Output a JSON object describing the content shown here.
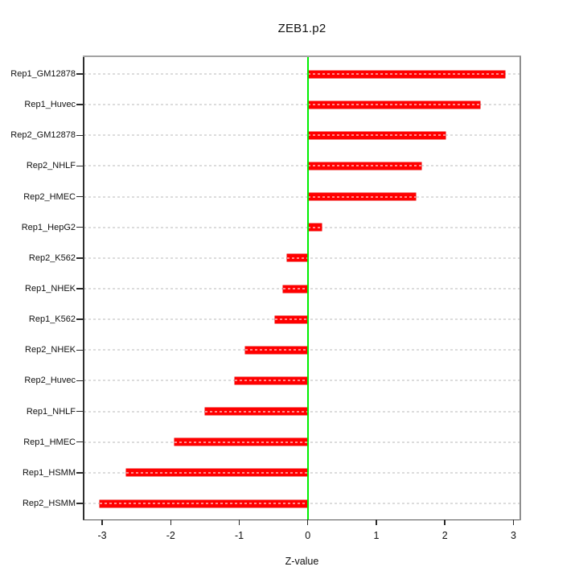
{
  "chart_data": {
    "type": "bar",
    "orientation": "horizontal",
    "title": "ZEB1.p2",
    "xlabel": "Z-value",
    "ylabel": "",
    "categories": [
      "Rep1_GM12878",
      "Rep1_Huvec",
      "Rep2_GM12878",
      "Rep2_NHLF",
      "Rep2_HMEC",
      "Rep1_HepG2",
      "Rep2_K562",
      "Rep1_NHEK",
      "Rep1_K562",
      "Rep2_NHEK",
      "Rep2_Huvec",
      "Rep1_NHLF",
      "Rep1_HMEC",
      "Rep1_HSMM",
      "Rep2_HSMM"
    ],
    "values": [
      2.88,
      2.51,
      2.01,
      1.66,
      1.57,
      0.2,
      -0.3,
      -0.36,
      -0.48,
      -0.91,
      -1.06,
      -1.5,
      -1.95,
      -2.65,
      -3.04
    ],
    "xlim": [
      -3.27,
      3.1
    ],
    "x_ticks": [
      -3,
      -2,
      -1,
      0,
      1,
      2,
      3
    ],
    "x_tick_labels": [
      "-3",
      "-2",
      "-1",
      "0",
      "1",
      "2",
      "3"
    ],
    "grid": "horizontal-dashed",
    "zero_reference_line": 0,
    "legend_position": "none",
    "colors": {
      "bar": "#ff0000",
      "zero_line": "#00ee00",
      "gridline": "#dcdcdc",
      "panel_border": "#a3a3a3",
      "axis": "#2e2e2e",
      "text": "#111111",
      "background": "#ffffff"
    }
  }
}
